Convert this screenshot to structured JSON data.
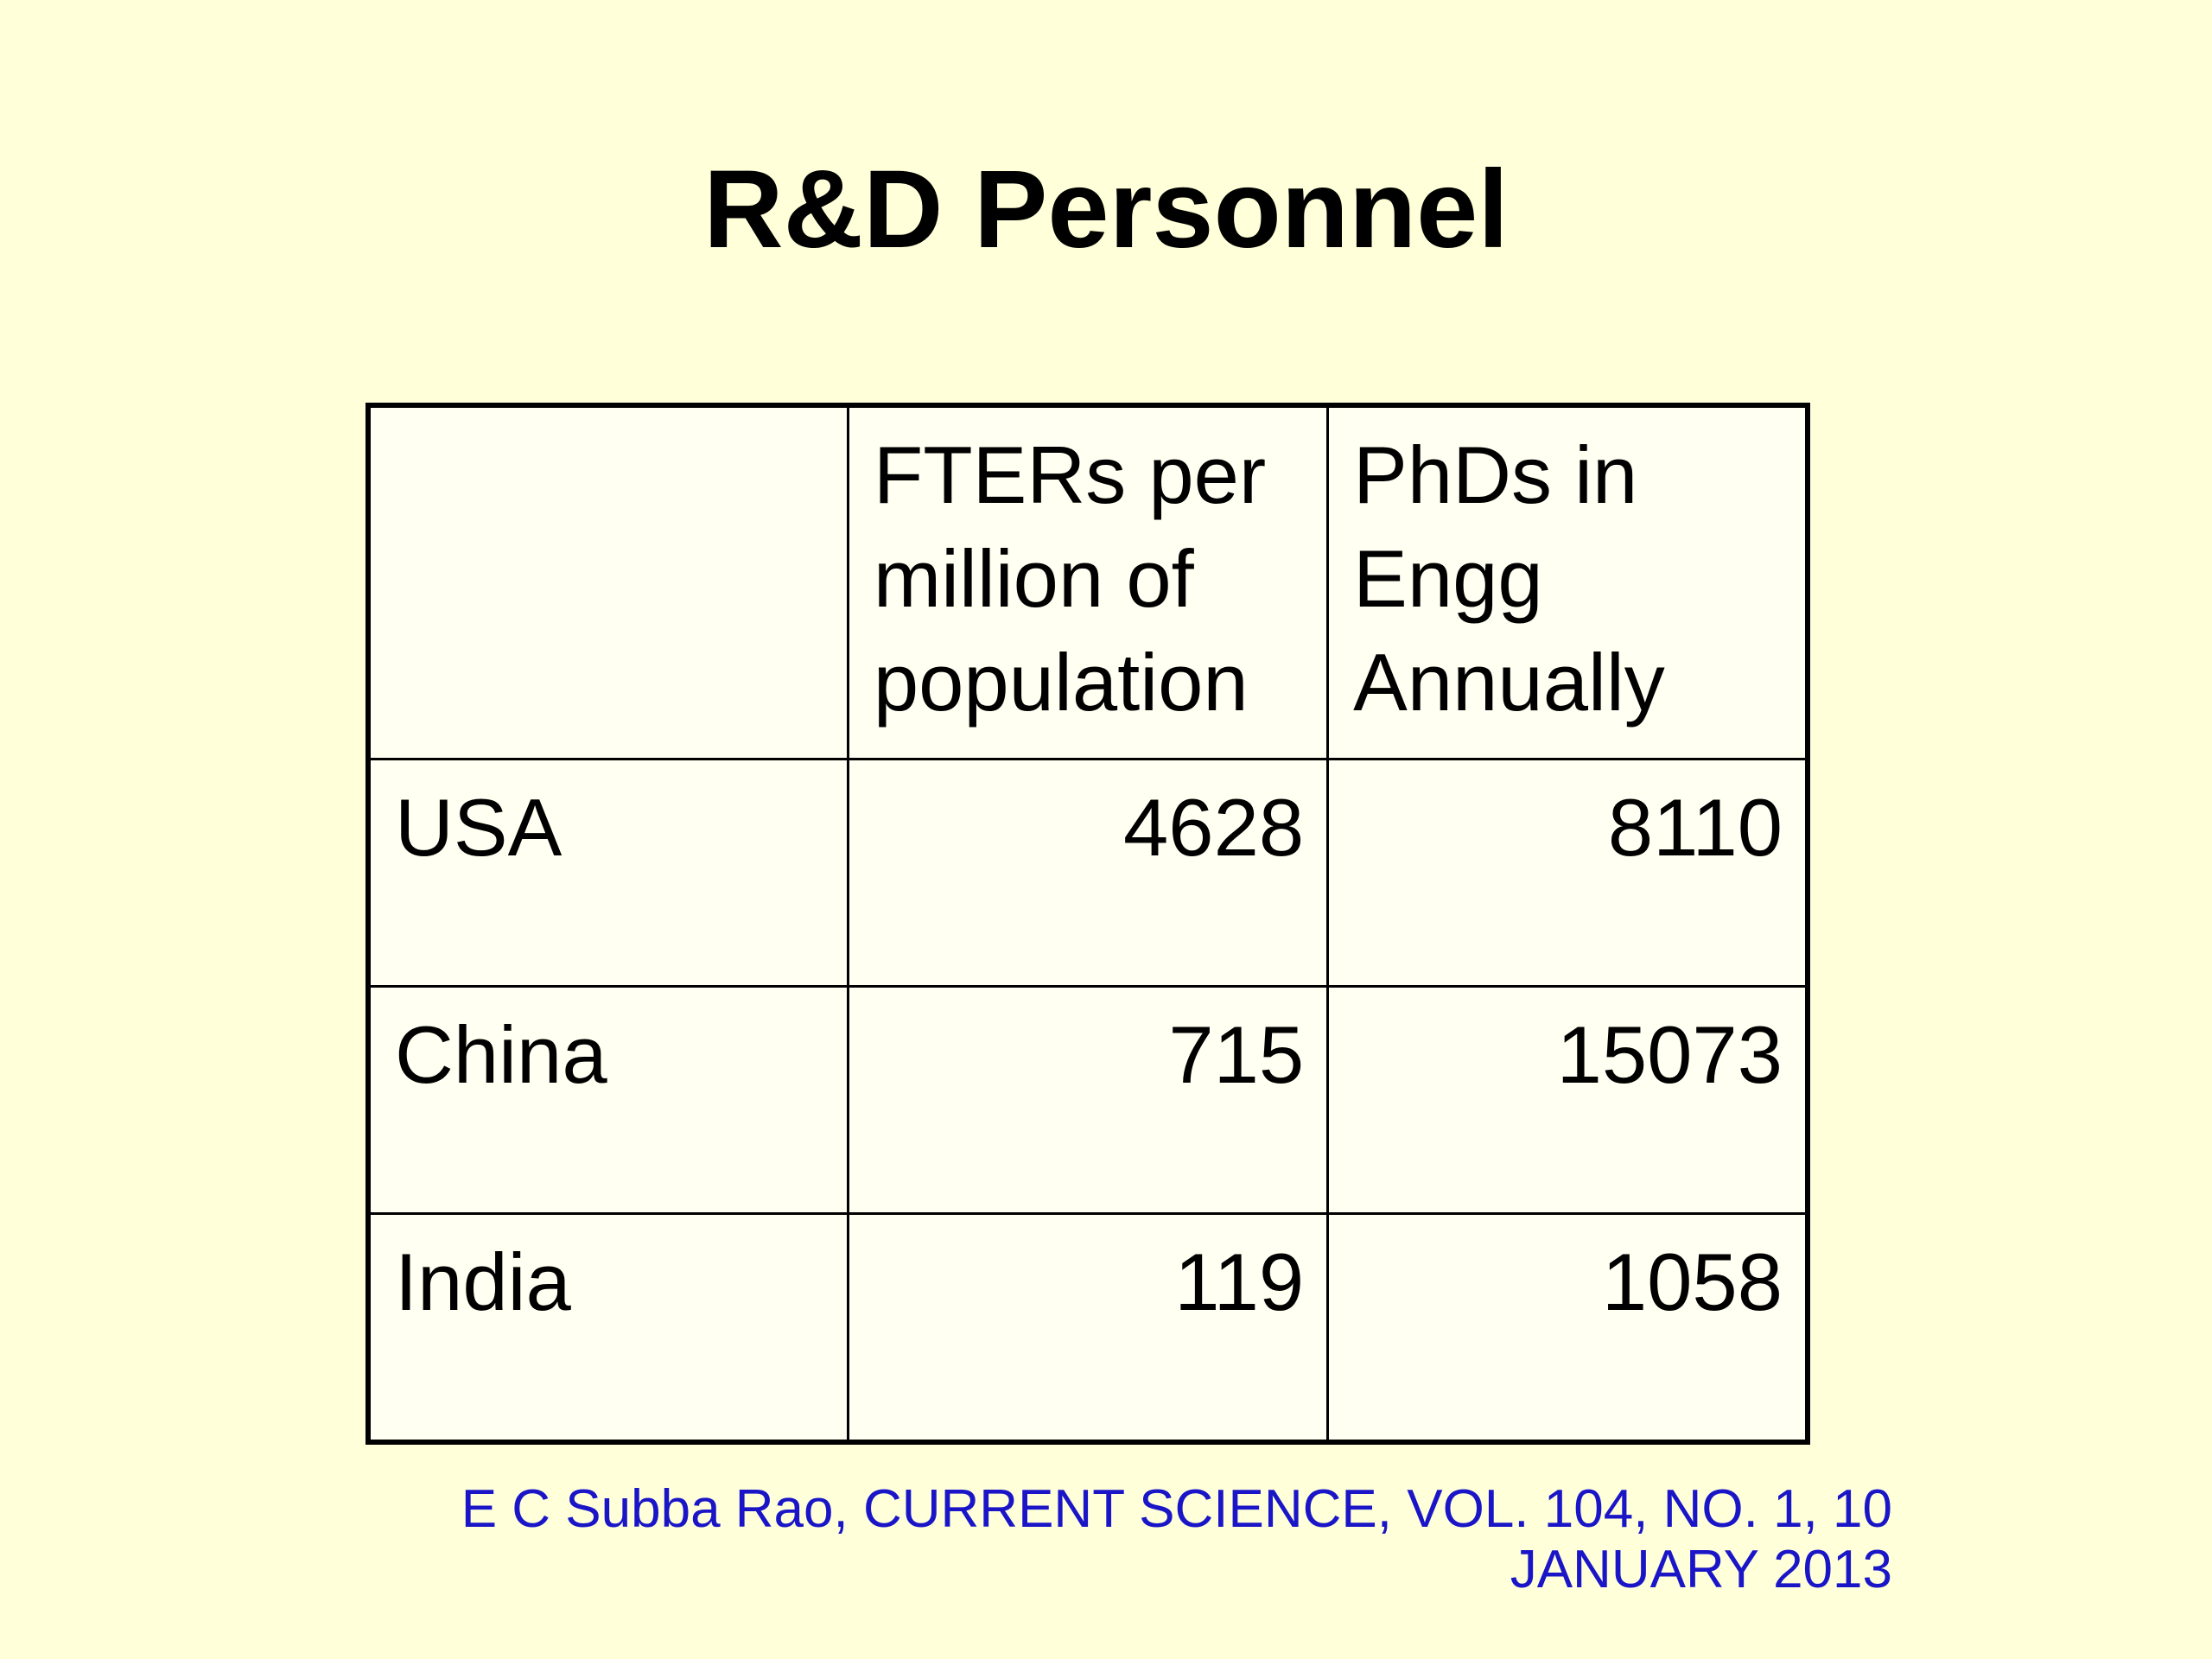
{
  "slide": {
    "title": "R&D Personnel"
  },
  "table": {
    "headers": [
      "",
      "FTERs per million of population",
      "PhDs in Engg Annually"
    ],
    "rows": [
      {
        "country": "USA",
        "fters": "4628",
        "phds": "8110"
      },
      {
        "country": "China",
        "fters": "715",
        "phds": "15073"
      },
      {
        "country": "India",
        "fters": "119",
        "phds": "1058"
      }
    ]
  },
  "citation": {
    "line1": "E C Subba Rao, CURRENT SCIENCE, VOL. 104, NO. 1, 10",
    "line2": "JANUARY 2013"
  },
  "colors": {
    "background": "#ffffd9",
    "table_background": "#fffff2",
    "citation": "#1a16c8"
  }
}
